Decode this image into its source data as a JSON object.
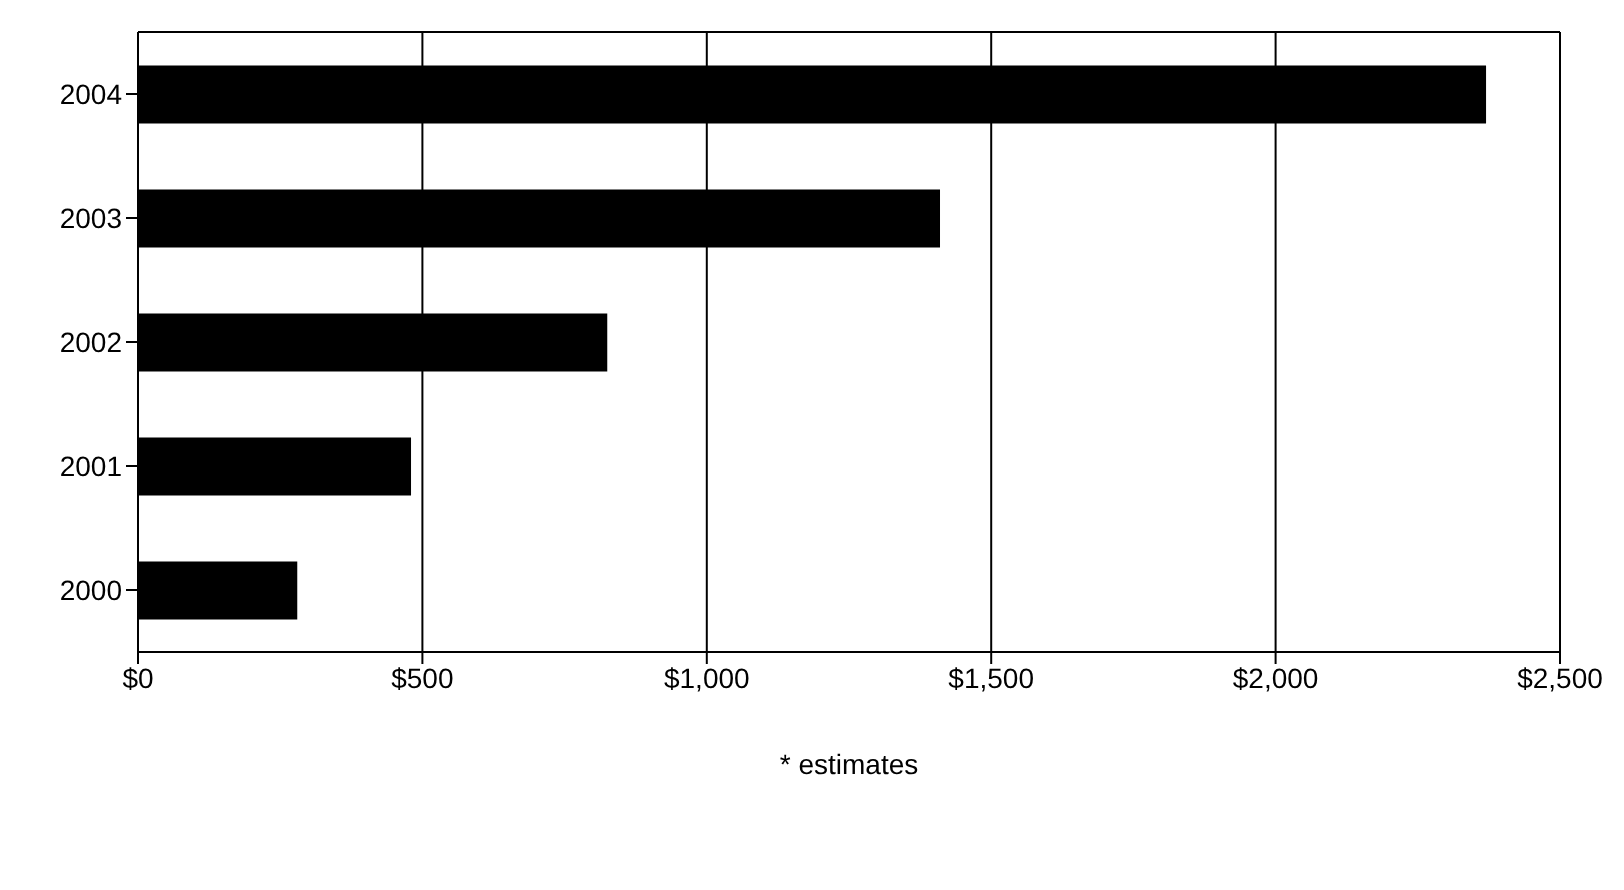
{
  "chart_data": {
    "type": "bar",
    "orientation": "horizontal",
    "categories": [
      "2004",
      "2003",
      "2002",
      "2001",
      "2000"
    ],
    "values": [
      2370,
      1410,
      825,
      480,
      280
    ],
    "color": "#000000",
    "xlim": [
      0,
      2500
    ],
    "xticks": [
      {
        "value": 0,
        "label": "$0"
      },
      {
        "value": 500,
        "label": "$500"
      },
      {
        "value": 1000,
        "label": "$1,000"
      },
      {
        "value": 1500,
        "label": "$1,500"
      },
      {
        "value": 2000,
        "label": "$2,000"
      },
      {
        "value": 2500,
        "label": "$2,500"
      }
    ],
    "grid": "x",
    "annotations": [
      "* estimates"
    ]
  }
}
